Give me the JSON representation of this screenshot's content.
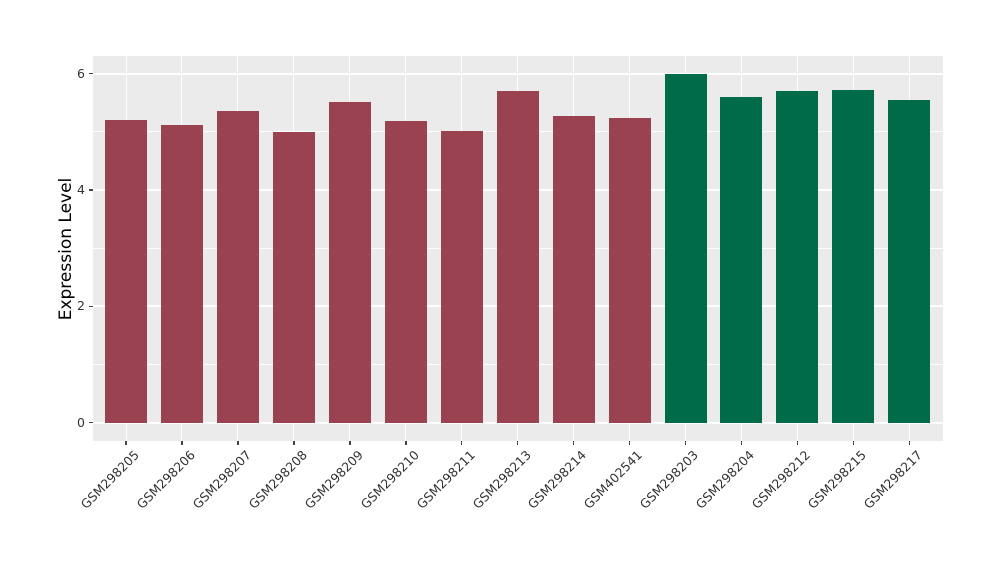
{
  "chart_data": {
    "type": "bar",
    "title": "",
    "xlabel": "",
    "ylabel": "Expression Level",
    "categories": [
      "GSM298205",
      "GSM298206",
      "GSM298207",
      "GSM298208",
      "GSM298209",
      "GSM298210",
      "GSM298211",
      "GSM298213",
      "GSM298214",
      "GSM402541",
      "GSM298203",
      "GSM298204",
      "GSM298212",
      "GSM298215",
      "GSM298217"
    ],
    "values": [
      5.21,
      5.11,
      5.36,
      4.99,
      5.52,
      5.18,
      5.02,
      5.7,
      5.28,
      5.23,
      6.0,
      5.6,
      5.7,
      5.72,
      5.54
    ],
    "bar_colors": [
      "#9B4251",
      "#9B4251",
      "#9B4251",
      "#9B4251",
      "#9B4251",
      "#9B4251",
      "#9B4251",
      "#9B4251",
      "#9B4251",
      "#9B4251",
      "#006B48",
      "#006B48",
      "#006B48",
      "#006B48",
      "#006B48"
    ],
    "group_colors": {
      "left_group": "#9B4251",
      "right_group": "#006B48"
    },
    "yticks": [
      0,
      2,
      4,
      6
    ],
    "ytick_labels": [
      "0",
      "2",
      "4",
      "6"
    ],
    "yminor": [
      1,
      3,
      5
    ],
    "ylim": [
      -0.3,
      6.28
    ],
    "grid": "major-and-minor-white-on-grey",
    "legend": "none",
    "panel_bg": "#EBEBEB",
    "figure_bg": "#FFFFFF",
    "x_label_rotation_deg": 45
  }
}
